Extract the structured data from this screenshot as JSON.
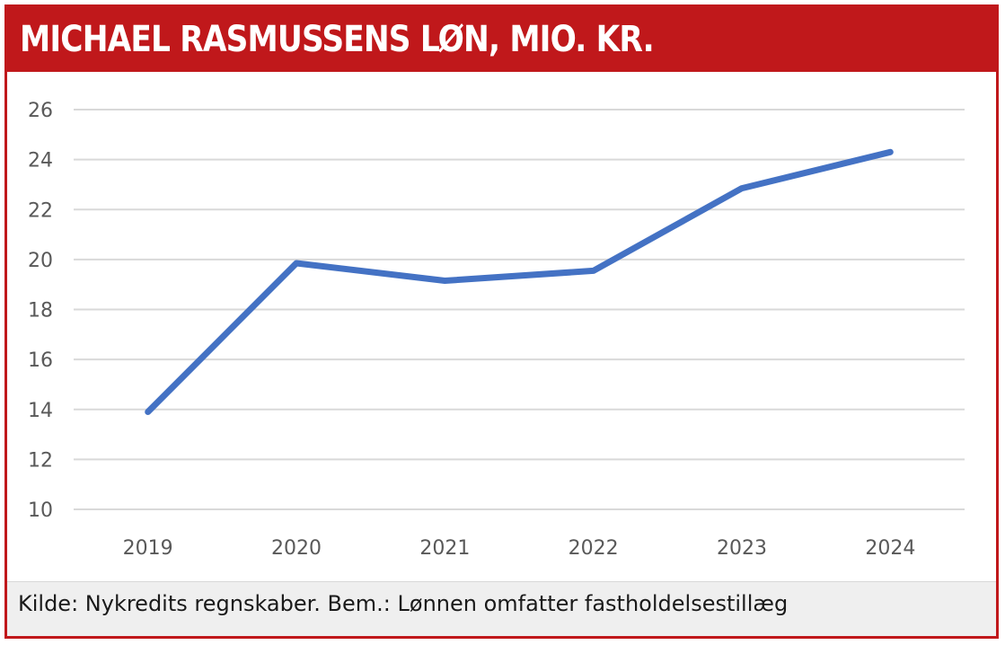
{
  "header": {
    "title": "MICHAEL RASMUSSENS LØN, MIO. KR."
  },
  "footer": {
    "source": "Kilde: Nykredits regnskaber. Bem.: Lønnen omfatter fastholdelsestillæg"
  },
  "colors": {
    "accent": "#c0181b",
    "line": "#4472c4",
    "grid": "#d9d9d9",
    "footer_bg": "#efefef"
  },
  "chart_data": {
    "type": "line",
    "title": "MICHAEL RASMUSSENS LØN, MIO. KR.",
    "xlabel": "",
    "ylabel": "",
    "categories": [
      "2019",
      "2020",
      "2021",
      "2022",
      "2023",
      "2024"
    ],
    "series": [
      {
        "name": "Løn",
        "values": [
          13.9,
          19.85,
          19.15,
          19.55,
          22.85,
          24.3
        ]
      }
    ],
    "ylim": [
      10,
      26
    ],
    "yticks": [
      "10",
      "12",
      "14",
      "16",
      "18",
      "20",
      "22",
      "24",
      "26"
    ],
    "grid": true,
    "legend": "none"
  }
}
